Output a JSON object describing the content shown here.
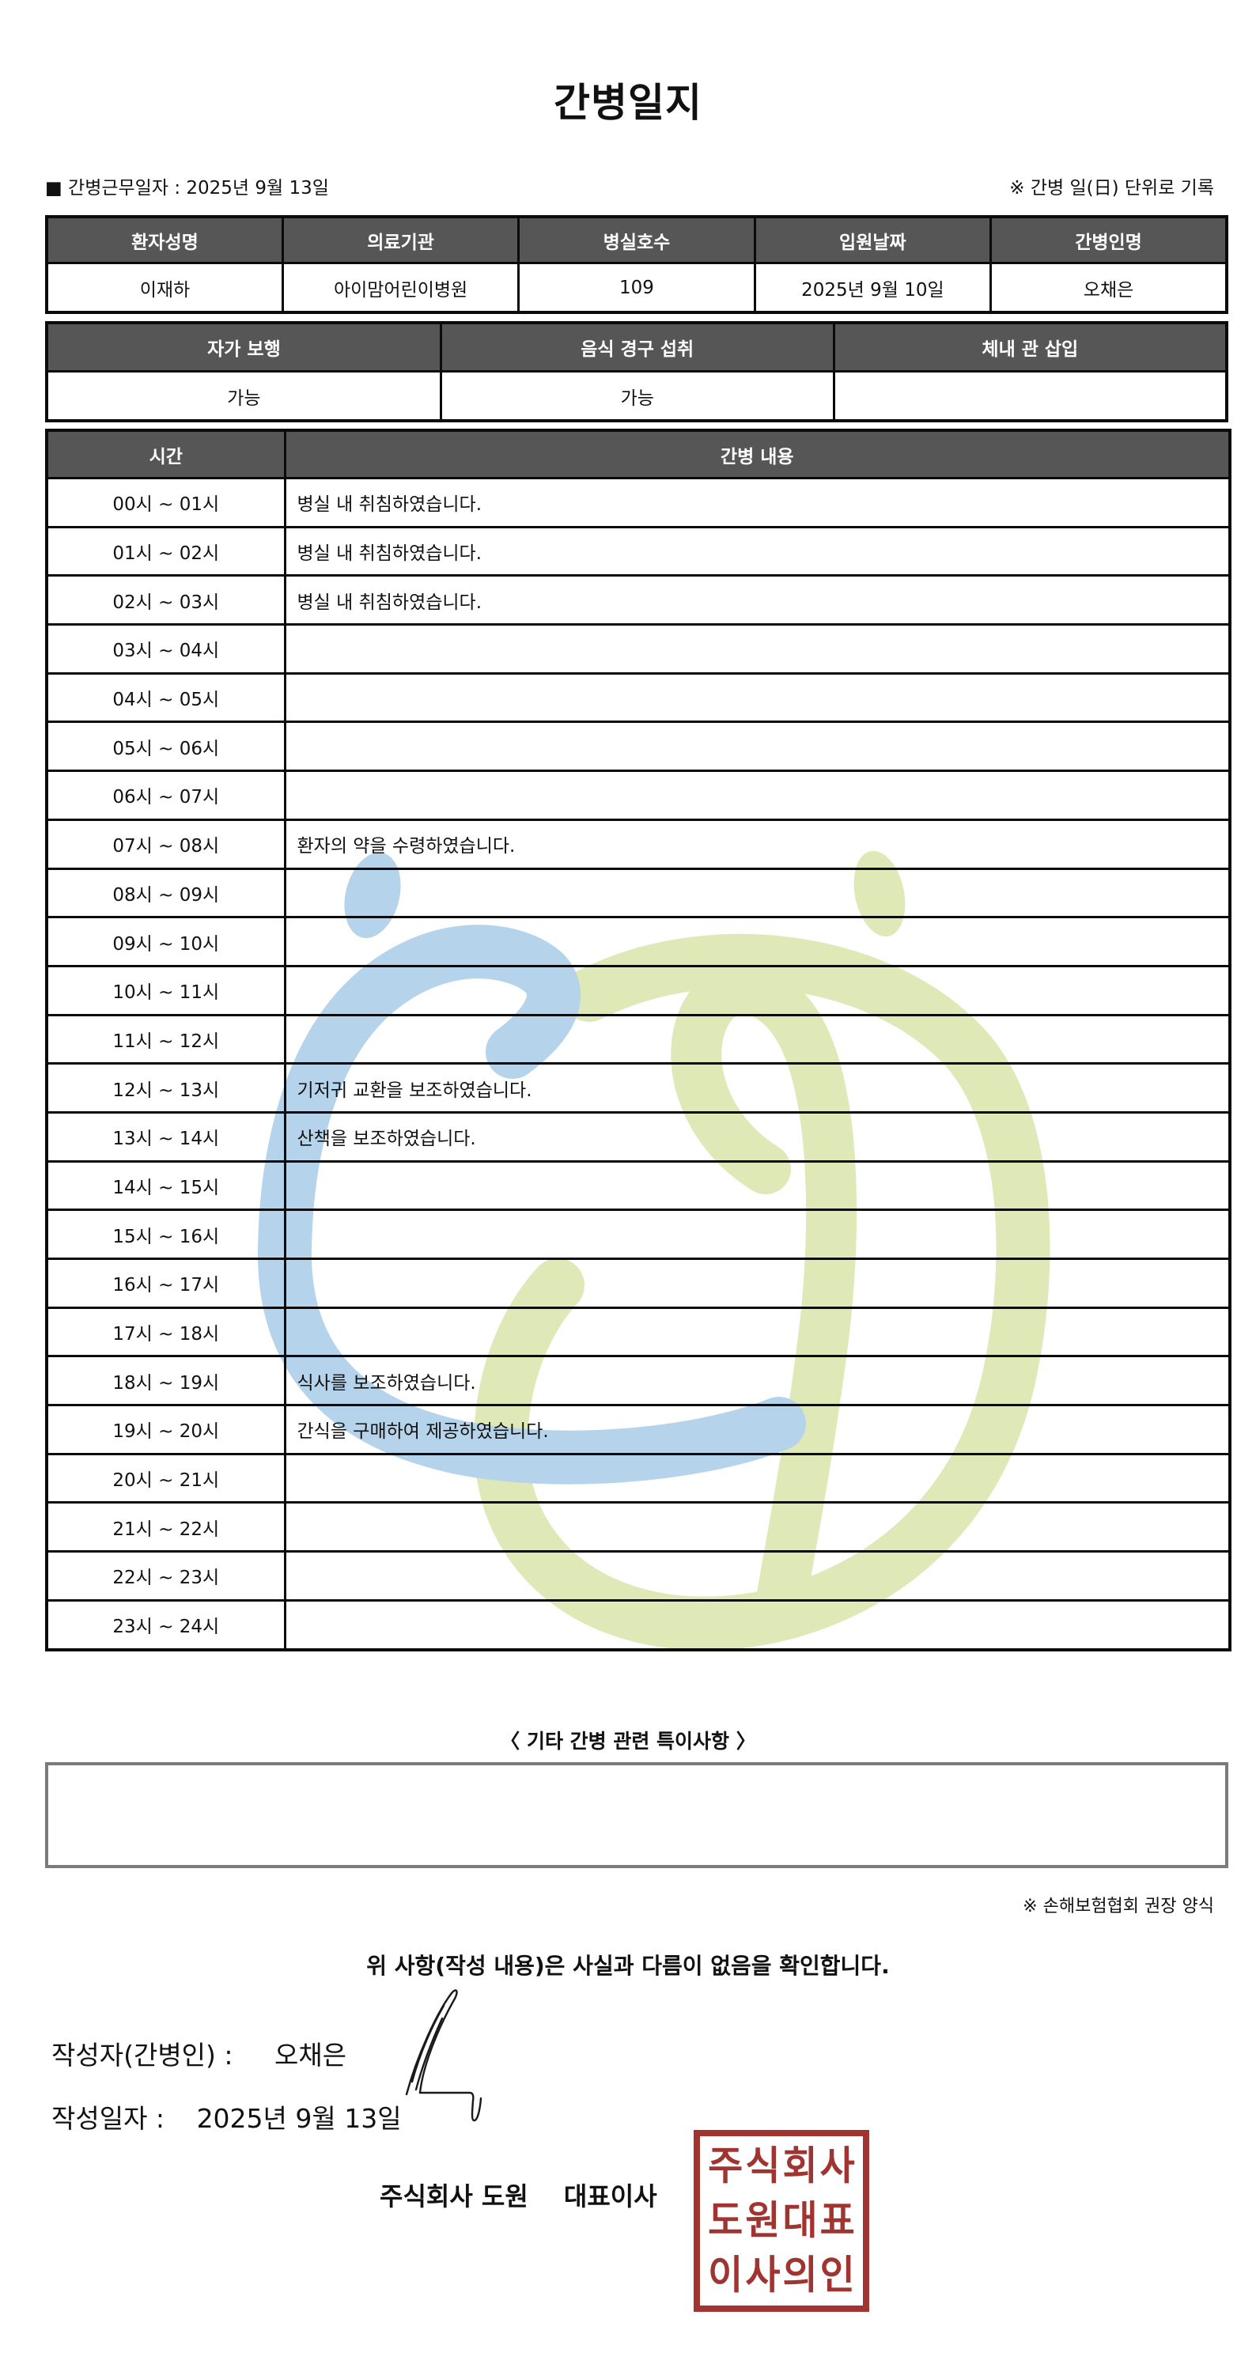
{
  "title": "간병일지",
  "colors": {
    "header_bg": "#565656",
    "border": "#0b0b0b",
    "stamp_red": "#9f3431",
    "watermark_blue": "#b5d3ea",
    "watermark_green": "#dfe9b8",
    "notes_border": "#7b7b7b"
  },
  "meta": {
    "work_date_label": "■ 간병근무일자 :",
    "work_date": "2025년 9월 13일",
    "unit_note": "※ 간병 일(日) 단위로 기록"
  },
  "patient_table": {
    "headers": [
      "환자성명",
      "의료기관",
      "병실호수",
      "입원날짜",
      "간병인명"
    ],
    "values": [
      "이재하",
      "아이맘어린이병원",
      "109",
      "2025년 9월 10일",
      "오채은"
    ]
  },
  "status_table": {
    "headers": [
      "자가 보행",
      "음식 경구 섭취",
      "체내 관 삽입"
    ],
    "values": [
      "가능",
      "가능",
      ""
    ]
  },
  "time_table": {
    "time_header": "시간",
    "content_header": "간병 내용",
    "rows": [
      {
        "time": "00시 ~ 01시",
        "content": "병실 내 취침하였습니다."
      },
      {
        "time": "01시 ~ 02시",
        "content": "병실 내 취침하였습니다."
      },
      {
        "time": "02시 ~ 03시",
        "content": "병실 내 취침하였습니다."
      },
      {
        "time": "03시 ~ 04시",
        "content": ""
      },
      {
        "time": "04시 ~ 05시",
        "content": ""
      },
      {
        "time": "05시 ~ 06시",
        "content": ""
      },
      {
        "time": "06시 ~ 07시",
        "content": ""
      },
      {
        "time": "07시 ~ 08시",
        "content": "환자의 약을 수령하였습니다."
      },
      {
        "time": "08시 ~ 09시",
        "content": ""
      },
      {
        "time": "09시 ~ 10시",
        "content": ""
      },
      {
        "time": "10시 ~ 11시",
        "content": ""
      },
      {
        "time": "11시 ~ 12시",
        "content": ""
      },
      {
        "time": "12시 ~ 13시",
        "content": "기저귀 교환을 보조하였습니다."
      },
      {
        "time": "13시 ~ 14시",
        "content": "산책을 보조하였습니다."
      },
      {
        "time": "14시 ~ 15시",
        "content": ""
      },
      {
        "time": "15시 ~ 16시",
        "content": ""
      },
      {
        "time": "16시 ~ 17시",
        "content": ""
      },
      {
        "time": "17시 ~ 18시",
        "content": ""
      },
      {
        "time": "18시 ~ 19시",
        "content": "식사를 보조하였습니다."
      },
      {
        "time": "19시 ~ 20시",
        "content": "간식을 구매하여 제공하였습니다."
      },
      {
        "time": "20시 ~ 21시",
        "content": ""
      },
      {
        "time": "21시 ~ 22시",
        "content": ""
      },
      {
        "time": "22시 ~ 23시",
        "content": ""
      },
      {
        "time": "23시 ~ 24시",
        "content": ""
      }
    ]
  },
  "notes": {
    "title": "〈 기타 간병 관련 특이사항 〉",
    "content": "",
    "form_note": "※ 손해보험협회 권장 양식"
  },
  "confirmation": {
    "statement": "위 사항(작성 내용)은 사실과 다름이 없음을 확인합니다.",
    "writer_label": "작성자(간병인) :",
    "writer_name": "오채은",
    "date_label": "작성일자 :",
    "date": "2025년 9월 13일",
    "company_name": "주식회사 도원",
    "ceo_title": "대표이사"
  },
  "stamp": {
    "lines": [
      "주식회사",
      "도원대표",
      "이사의인"
    ]
  }
}
